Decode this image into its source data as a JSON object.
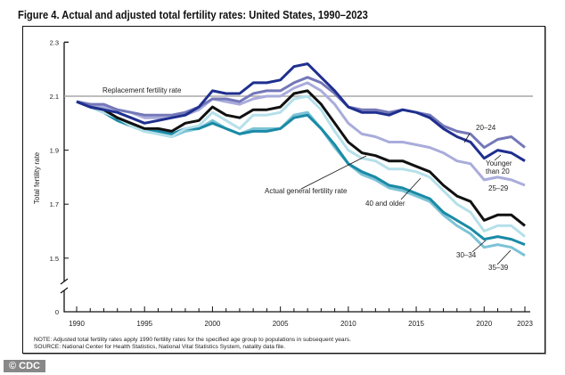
{
  "title": "Figure 4. Actual and adjusted total fertility rates: United States, 1990–2023",
  "notes": {
    "note": "NOTE: Adjusted total fertility rates apply 1990 fertility rates for the specified age group to populations in subsequent years.",
    "source": "SOURCE: National Center for Health Statistics, National Vital Statistics System, natality data file."
  },
  "watermark": "© CDC",
  "chart_data": {
    "type": "line",
    "title": "Figure 4. Actual and adjusted total fertility rates: United States, 1990–2023",
    "xlabel": "",
    "ylabel": "Total fertility rate",
    "xlim": [
      1990,
      2023
    ],
    "ylim": [
      1.5,
      2.3
    ],
    "y_axis_break": true,
    "y_axis_origin_label": "0",
    "x_ticks": [
      "1990",
      "1995",
      "2000",
      "2005",
      "2010",
      "2015",
      "2020",
      "2023"
    ],
    "y_ticks": [
      "2.3",
      "2.1",
      "1.9",
      "1.7",
      "1.5"
    ],
    "grid": false,
    "reference_line": {
      "label": "Replacement fertility rate",
      "value": 2.1,
      "color": "#a8a8a8"
    },
    "x": [
      1990,
      1991,
      1992,
      1993,
      1994,
      1995,
      1996,
      1997,
      1998,
      1999,
      2000,
      2001,
      2002,
      2003,
      2004,
      2005,
      2006,
      2007,
      2008,
      2009,
      2010,
      2011,
      2012,
      2013,
      2014,
      2015,
      2016,
      2017,
      2018,
      2019,
      2020,
      2021,
      2022,
      2023
    ],
    "series": [
      {
        "name": "35–39",
        "color": "#7cc3d6",
        "values": [
          2.08,
          2.06,
          2.04,
          2.01,
          1.99,
          1.97,
          1.96,
          1.95,
          1.97,
          1.98,
          2.01,
          1.98,
          1.96,
          1.98,
          1.98,
          1.98,
          2.03,
          2.04,
          1.98,
          1.91,
          1.85,
          1.81,
          1.79,
          1.76,
          1.75,
          1.73,
          1.71,
          1.66,
          1.62,
          1.59,
          1.54,
          1.55,
          1.54,
          1.51
        ]
      },
      {
        "name": "30–34",
        "color": "#1a8aa6",
        "values": [
          2.08,
          2.06,
          2.04,
          2.01,
          1.99,
          1.97,
          1.97,
          1.96,
          1.98,
          1.98,
          2.0,
          1.98,
          1.96,
          1.97,
          1.97,
          1.98,
          2.02,
          2.03,
          1.98,
          1.92,
          1.85,
          1.82,
          1.8,
          1.77,
          1.76,
          1.74,
          1.72,
          1.67,
          1.64,
          1.61,
          1.57,
          1.58,
          1.57,
          1.55
        ]
      },
      {
        "name": "40 and older",
        "color": "#b5e0ea",
        "values": [
          2.08,
          2.06,
          2.04,
          2.02,
          1.99,
          1.97,
          1.96,
          1.95,
          1.98,
          1.99,
          2.04,
          2.01,
          1.98,
          2.03,
          2.03,
          2.04,
          2.09,
          2.1,
          2.05,
          1.97,
          1.9,
          1.87,
          1.86,
          1.83,
          1.83,
          1.82,
          1.8,
          1.75,
          1.7,
          1.67,
          1.6,
          1.62,
          1.62,
          1.58
        ]
      },
      {
        "name": "Actual general fertility rate",
        "color": "#111111",
        "values": [
          2.08,
          2.06,
          2.05,
          2.02,
          2.0,
          1.98,
          1.98,
          1.97,
          2.0,
          2.01,
          2.06,
          2.03,
          2.02,
          2.05,
          2.05,
          2.06,
          2.11,
          2.12,
          2.07,
          2.0,
          1.93,
          1.89,
          1.88,
          1.86,
          1.86,
          1.84,
          1.82,
          1.77,
          1.73,
          1.71,
          1.64,
          1.66,
          1.66,
          1.62
        ]
      },
      {
        "name": "25–29",
        "color": "#a9acdb",
        "values": [
          2.08,
          2.07,
          2.06,
          2.05,
          2.04,
          2.02,
          2.02,
          2.02,
          2.03,
          2.05,
          2.09,
          2.08,
          2.07,
          2.09,
          2.1,
          2.1,
          2.13,
          2.15,
          2.12,
          2.07,
          2.0,
          1.96,
          1.95,
          1.93,
          1.93,
          1.92,
          1.91,
          1.89,
          1.86,
          1.85,
          1.79,
          1.8,
          1.79,
          1.77
        ]
      },
      {
        "name": "20–24",
        "color": "#7478b8",
        "values": [
          2.08,
          2.07,
          2.07,
          2.05,
          2.04,
          2.03,
          2.03,
          2.03,
          2.04,
          2.06,
          2.09,
          2.09,
          2.08,
          2.11,
          2.12,
          2.12,
          2.15,
          2.17,
          2.15,
          2.11,
          2.06,
          2.05,
          2.05,
          2.04,
          2.05,
          2.04,
          2.03,
          1.99,
          1.97,
          1.96,
          1.91,
          1.94,
          1.95,
          1.91
        ]
      },
      {
        "name": "Younger than 20",
        "color": "#1f2f8f",
        "values": [
          2.08,
          2.06,
          2.05,
          2.04,
          2.02,
          2.0,
          2.01,
          2.02,
          2.03,
          2.06,
          2.12,
          2.11,
          2.11,
          2.15,
          2.15,
          2.16,
          2.21,
          2.22,
          2.17,
          2.12,
          2.06,
          2.04,
          2.04,
          2.03,
          2.05,
          2.04,
          2.02,
          1.98,
          1.95,
          1.93,
          1.87,
          1.9,
          1.89,
          1.86
        ]
      }
    ]
  }
}
